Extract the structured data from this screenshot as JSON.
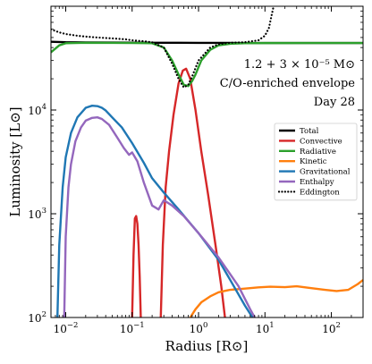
{
  "chart_data": {
    "type": "line",
    "xlabel": "Radius [R⊙]",
    "ylabel": "Luminosity [L⊙]",
    "xscale": "log",
    "yscale": "log",
    "xlim": [
      0.006,
      300
    ],
    "ylim": [
      100,
      100000
    ],
    "grid": false,
    "legend_placement": "center-right",
    "x_ticks": [
      {
        "value": 0.01,
        "base": "10",
        "exp": "−2"
      },
      {
        "value": 0.1,
        "base": "10",
        "exp": "−1"
      },
      {
        "value": 1,
        "base": "10",
        "exp": "0"
      },
      {
        "value": 10,
        "base": "10",
        "exp": "1"
      },
      {
        "value": 100,
        "base": "10",
        "exp": "2"
      }
    ],
    "y_ticks": [
      {
        "value": 100,
        "base": "10",
        "exp": "2"
      },
      {
        "value": 1000,
        "base": "10",
        "exp": "3"
      },
      {
        "value": 10000,
        "base": "10",
        "exp": "4"
      }
    ],
    "annotations": [
      "1.2 + 3 × 10⁻⁵ M⊙",
      "C/O-enriched envelope",
      "Day 28"
    ],
    "series": [
      {
        "name": "Total",
        "color": "#000000",
        "dash": "solid",
        "x": [
          0.006,
          0.01,
          0.02,
          0.05,
          0.1,
          0.2,
          0.5,
          1,
          2,
          5,
          10,
          20,
          50,
          100,
          300
        ],
        "y": [
          45500,
          45000,
          44800,
          44700,
          44600,
          44500,
          44500,
          44400,
          44400,
          44300,
          44300,
          44300,
          44300,
          44300,
          44300
        ]
      },
      {
        "name": "Convective",
        "color": "#d62728",
        "dash": "solid",
        "segments": [
          {
            "x": [
              0.1,
              0.105,
              0.11,
              0.115,
              0.12,
              0.125,
              0.13,
              0.135
            ],
            "y": [
              100,
              400,
              900,
              950,
              800,
              500,
              250,
              100
            ]
          },
          {
            "x": [
              0.27,
              0.29,
              0.32,
              0.36,
              0.42,
              0.5,
              0.58,
              0.65,
              0.75,
              0.9,
              1.1,
              1.4,
              1.8,
              2.2,
              2.5
            ],
            "y": [
              100,
              500,
              1800,
              4000,
              9000,
              18000,
              24000,
              25000,
              20000,
              10000,
              4000,
              1500,
              500,
              200,
              100
            ]
          }
        ]
      },
      {
        "name": "Radiative",
        "color": "#2ca02c",
        "dash": "solid",
        "x": [
          0.006,
          0.008,
          0.01,
          0.02,
          0.05,
          0.1,
          0.2,
          0.3,
          0.4,
          0.5,
          0.6,
          0.7,
          0.8,
          0.9,
          1.1,
          1.5,
          2,
          3,
          5,
          10,
          20,
          50,
          100,
          300
        ],
        "y": [
          36000,
          42000,
          44000,
          44500,
          44400,
          44300,
          44000,
          40000,
          30000,
          22000,
          17500,
          17000,
          19000,
          22000,
          30000,
          38000,
          42000,
          43500,
          44000,
          44200,
          44200,
          44300,
          44300,
          44300
        ]
      },
      {
        "name": "Kinetic",
        "color": "#ff7f0e",
        "dash": "solid",
        "x": [
          0.75,
          0.9,
          1.1,
          1.5,
          2,
          3,
          5,
          8,
          12,
          20,
          30,
          50,
          80,
          120,
          180,
          250,
          300
        ],
        "y": [
          100,
          120,
          140,
          160,
          175,
          185,
          190,
          195,
          198,
          196,
          200,
          192,
          185,
          180,
          185,
          210,
          230
        ]
      },
      {
        "name": "Gravitational",
        "color": "#1f77b4",
        "dash": "solid",
        "x": [
          0.0075,
          0.008,
          0.009,
          0.01,
          0.012,
          0.015,
          0.02,
          0.025,
          0.03,
          0.035,
          0.04,
          0.05,
          0.07,
          0.1,
          0.15,
          0.2,
          0.3,
          0.5,
          1,
          2,
          3,
          5,
          6.5
        ],
        "y": [
          100,
          500,
          1800,
          3500,
          6000,
          8500,
          10500,
          11000,
          10900,
          10500,
          9900,
          8500,
          6800,
          4800,
          3100,
          2200,
          1600,
          1100,
          650,
          360,
          230,
          130,
          100
        ]
      },
      {
        "name": "Enthalpy",
        "color": "#9467bd",
        "dash": "solid",
        "x": [
          0.0095,
          0.01,
          0.011,
          0.012,
          0.014,
          0.017,
          0.02,
          0.025,
          0.03,
          0.035,
          0.045,
          0.06,
          0.075,
          0.09,
          0.1,
          0.12,
          0.15,
          0.2,
          0.25,
          0.3,
          0.4,
          0.6,
          1,
          2,
          4,
          6,
          7
        ],
        "y": [
          100,
          600,
          1800,
          3000,
          5000,
          6800,
          7900,
          8400,
          8500,
          8200,
          7200,
          5400,
          4300,
          3700,
          3900,
          3200,
          2000,
          1200,
          1100,
          1350,
          1200,
          950,
          650,
          380,
          200,
          120,
          100
        ]
      },
      {
        "name": "Eddington",
        "color": "#000000",
        "dash": "dotted",
        "x": [
          0.006,
          0.008,
          0.01,
          0.015,
          0.02,
          0.03,
          0.05,
          0.08,
          0.1,
          0.15,
          0.2,
          0.3,
          0.4,
          0.5,
          0.6,
          0.7,
          0.8,
          1,
          1.5,
          2,
          3,
          5,
          8,
          10,
          11.5,
          12.5,
          13.5
        ],
        "y": [
          60000,
          56000,
          54000,
          52000,
          51000,
          50000,
          49000,
          48000,
          47000,
          46000,
          45000,
          40000,
          28000,
          20000,
          16500,
          17500,
          21000,
          30000,
          40000,
          43000,
          44500,
          45000,
          47000,
          52000,
          62000,
          80000,
          100000
        ]
      }
    ]
  }
}
